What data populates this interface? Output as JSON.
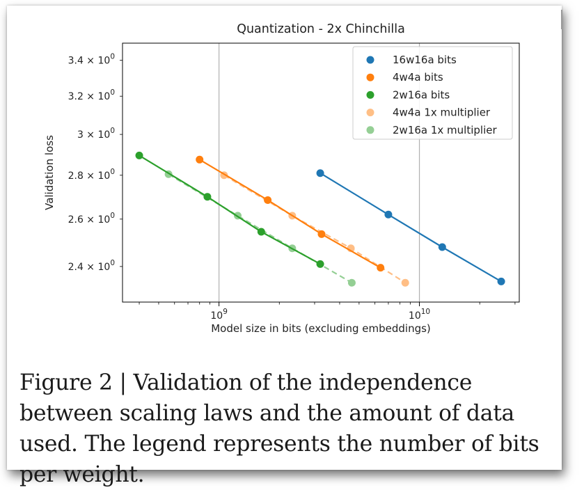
{
  "caption": "Figure 2 | Validation of the independence between scaling laws and the amount of data used. The legend represents the number of bits per weight.",
  "chart_data": {
    "type": "line",
    "title": "Quantization - 2x Chinchilla",
    "xlabel": "Model size in bits (excluding embeddings)",
    "ylabel": "Validation loss",
    "xscale": "log",
    "yscale": "log",
    "xlim": [
      330000000,
      31500000000
    ],
    "ylim": [
      2.26,
      3.5
    ],
    "x_major_ticks": [
      {
        "value": 1000000000,
        "base": "10",
        "exp": "9"
      },
      {
        "value": 10000000000,
        "base": "10",
        "exp": "10"
      }
    ],
    "y_ticks": [
      {
        "value": 3.4,
        "mant": "3.4 × 10",
        "exp": "0"
      },
      {
        "value": 3.2,
        "mant": "3.2 × 10",
        "exp": "0"
      },
      {
        "value": 3.0,
        "mant": "3 × 10",
        "exp": "0"
      },
      {
        "value": 2.8,
        "mant": "2.8 × 10",
        "exp": "0"
      },
      {
        "value": 2.6,
        "mant": "2.6 × 10",
        "exp": "0"
      },
      {
        "value": 2.4,
        "mant": "2.4 × 10",
        "exp": "0"
      }
    ],
    "grid": "vertical major",
    "legend_position": "top-right",
    "series": [
      {
        "name": "16w16a bits",
        "color": "#1f77b4",
        "alpha": 1.0,
        "linestyle": "solid",
        "x": [
          3200000000,
          7000000000,
          13000000000,
          25600000000
        ],
        "y": [
          2.81,
          2.62,
          2.48,
          2.34
        ]
      },
      {
        "name": "4w4a bits",
        "color": "#ff7f0e",
        "alpha": 1.0,
        "linestyle": "solid",
        "x": [
          800000000,
          1750000000,
          3250000000,
          6400000000
        ],
        "y": [
          2.875,
          2.685,
          2.535,
          2.395
        ]
      },
      {
        "name": "2w16a bits",
        "color": "#2ca02c",
        "alpha": 1.0,
        "linestyle": "solid",
        "x": [
          400000000,
          875000000,
          1625000000,
          3200000000
        ],
        "y": [
          2.895,
          2.7,
          2.545,
          2.41
        ]
      },
      {
        "name": "4w4a 1x multiplier",
        "color": "#ff7f0e",
        "alpha": 0.5,
        "linestyle": "dashed",
        "x": [
          1060000000,
          2320000000,
          4550000000,
          8500000000
        ],
        "y": [
          2.8,
          2.615,
          2.475,
          2.335
        ]
      },
      {
        "name": "2w16a 1x multiplier",
        "color": "#2ca02c",
        "alpha": 0.5,
        "linestyle": "dashed",
        "x": [
          560000000,
          1240000000,
          2320000000,
          4600000000
        ],
        "y": [
          2.805,
          2.615,
          2.475,
          2.335
        ]
      }
    ]
  }
}
